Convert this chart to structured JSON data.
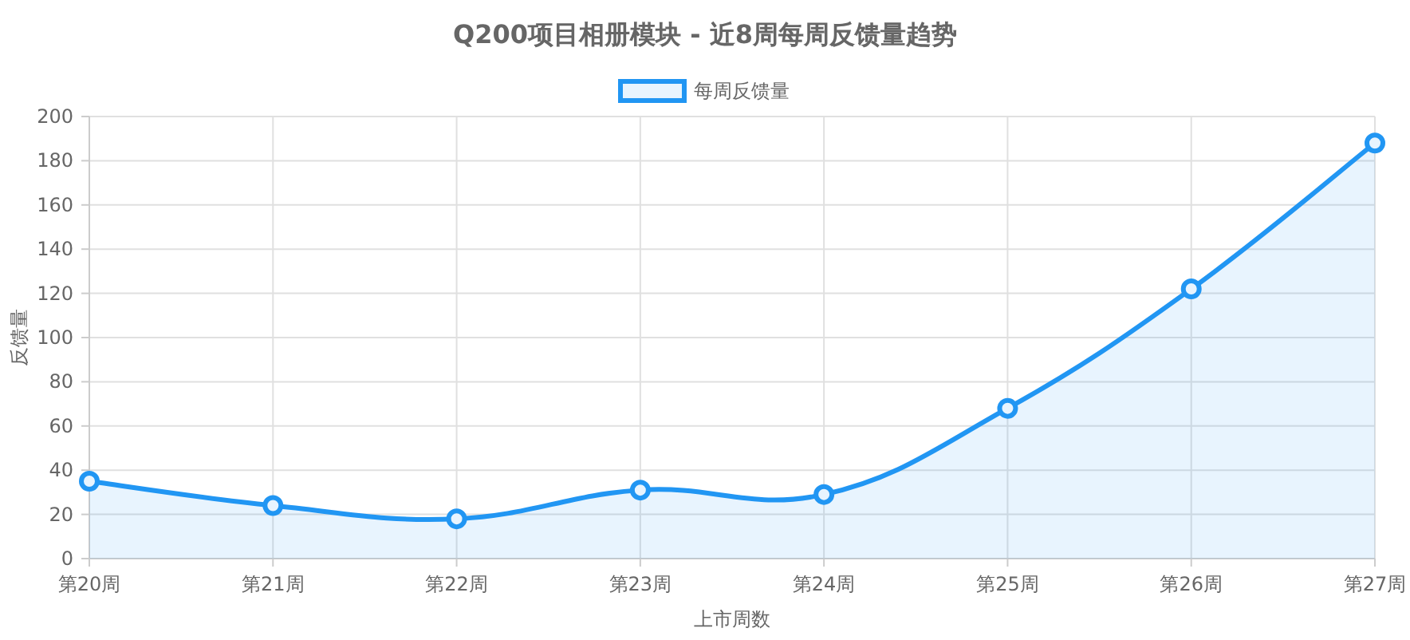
{
  "chart_data": {
    "type": "area",
    "title": "Q200项目相册模块 - 近8周每周反馈量趋势",
    "xlabel": "上市周数",
    "ylabel": "反馈量",
    "categories": [
      "第20周",
      "第21周",
      "第22周",
      "第23周",
      "第24周",
      "第25周",
      "第26周",
      "第27周"
    ],
    "series": [
      {
        "name": "每周反馈量",
        "color": "#2196f3",
        "values": [
          35,
          24,
          18,
          31,
          29,
          68,
          122,
          188
        ]
      }
    ],
    "ylim": [
      0,
      200
    ],
    "yticks": [
      0,
      20,
      40,
      60,
      80,
      100,
      120,
      140,
      160,
      180,
      200
    ],
    "grid": true,
    "legend": "top",
    "marker": "circle",
    "line_style": "solid"
  }
}
